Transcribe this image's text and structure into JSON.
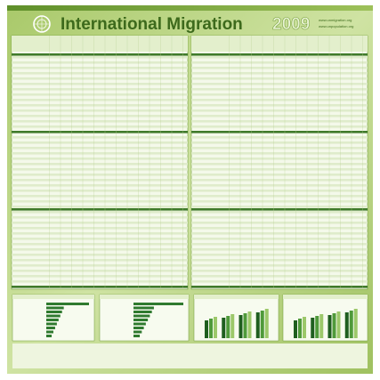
{
  "header": {
    "title": "International Migration",
    "year": "2009",
    "links": [
      "www.unmigration.org",
      "www.unpopulation.org"
    ]
  }
}
